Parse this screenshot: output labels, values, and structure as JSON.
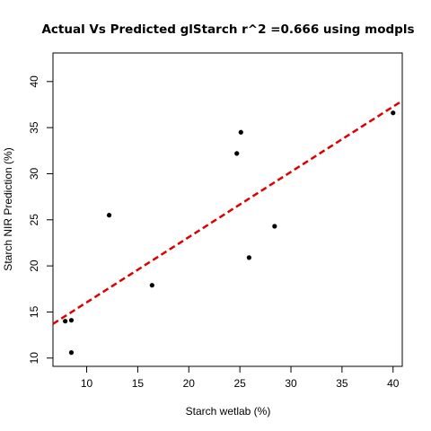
{
  "chart_data": {
    "type": "scatter",
    "title": "Actual Vs Predicted glStarch r^2 =0.666 using modpls",
    "xlabel": "Starch wetlab (%)",
    "ylabel": "Starch NIR Prediction (%)",
    "xlim": [
      6.7,
      40.9
    ],
    "ylim": [
      9.1,
      43.1
    ],
    "xticks": [
      10,
      15,
      20,
      25,
      30,
      35,
      40
    ],
    "yticks": [
      10,
      15,
      20,
      25,
      30,
      35,
      40
    ],
    "points": [
      {
        "x": 7.9,
        "y": 14.0
      },
      {
        "x": 8.5,
        "y": 14.1
      },
      {
        "x": 8.5,
        "y": 10.6
      },
      {
        "x": 12.2,
        "y": 25.5
      },
      {
        "x": 16.4,
        "y": 17.9
      },
      {
        "x": 24.7,
        "y": 32.2
      },
      {
        "x": 25.1,
        "y": 34.5
      },
      {
        "x": 25.9,
        "y": 20.9
      },
      {
        "x": 28.4,
        "y": 24.3
      },
      {
        "x": 40.0,
        "y": 36.6
      }
    ],
    "fit_line": {
      "intercept": 8.96,
      "slope": 0.708,
      "color": "#dd0000",
      "style": "dashed"
    },
    "point_color": "#000000",
    "grid": false,
    "legend": "none"
  }
}
